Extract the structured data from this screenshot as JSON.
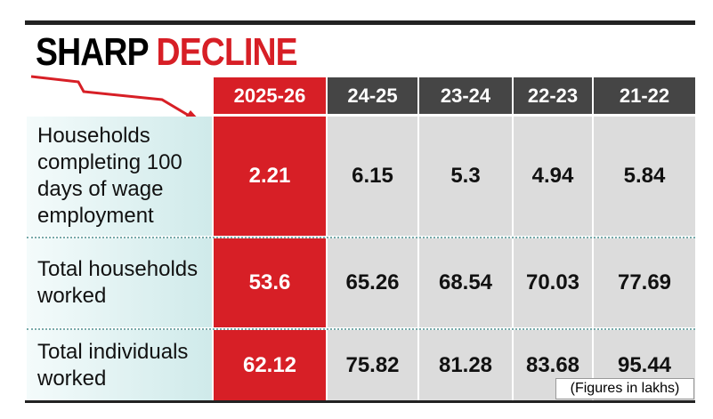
{
  "header": {
    "title_black": "SHARP",
    "title_red": "DECLINE"
  },
  "table": {
    "columns": [
      "2025-26",
      "24-25",
      "23-24",
      "22-23",
      "21-22"
    ],
    "rows": [
      {
        "label": "Households completing 100 days of wage employment",
        "values": [
          2.21,
          6.15,
          5.3,
          4.94,
          5.84
        ]
      },
      {
        "label": "Total households worked",
        "values": [
          53.6,
          65.26,
          68.54,
          70.03,
          77.69
        ]
      },
      {
        "label": "Total individuals worked",
        "values": [
          62.12,
          75.82,
          81.28,
          83.68,
          95.44
        ]
      }
    ]
  },
  "note": "(Figures in lakhs)"
}
